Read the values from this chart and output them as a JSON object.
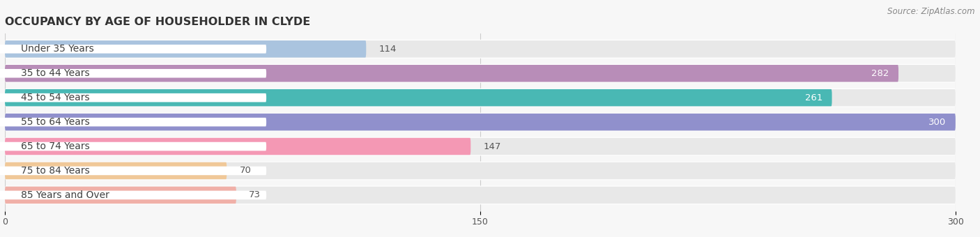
{
  "title": "OCCUPANCY BY AGE OF HOUSEHOLDER IN CLYDE",
  "source": "Source: ZipAtlas.com",
  "categories": [
    "Under 35 Years",
    "35 to 44 Years",
    "45 to 54 Years",
    "55 to 64 Years",
    "65 to 74 Years",
    "75 to 84 Years",
    "85 Years and Over"
  ],
  "values": [
    114,
    282,
    261,
    300,
    147,
    70,
    73
  ],
  "bar_colors": [
    "#aac4df",
    "#b88db8",
    "#49b8b4",
    "#9090cc",
    "#f498b4",
    "#f0c898",
    "#f0b0a8"
  ],
  "xlim": [
    0,
    300
  ],
  "xticks": [
    0,
    150,
    300
  ],
  "label_fontsize": 10,
  "value_fontsize": 9.5,
  "title_fontsize": 11.5,
  "background_color": "#f7f7f7",
  "bar_bg_color": "#e8e8e8",
  "bar_border_color": "#ffffff",
  "bar_height": 0.7,
  "value_threshold": 200
}
